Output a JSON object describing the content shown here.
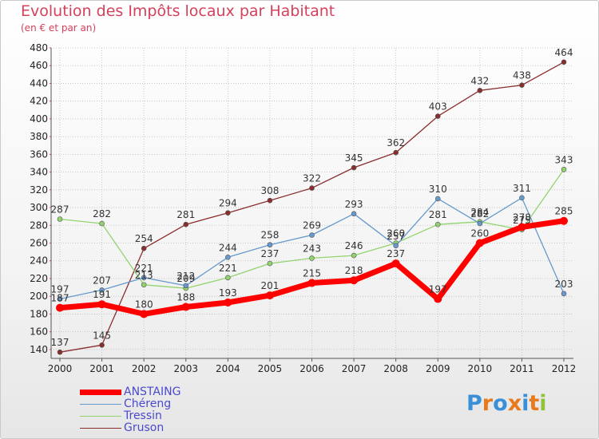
{
  "title": "Evolution des Impôts locaux par Habitant",
  "subtitle": "(en € et par an)",
  "logo": {
    "letters": [
      "P",
      "r",
      "o",
      "x",
      "i",
      "t",
      "i"
    ],
    "colors": [
      "#3a8fd9",
      "#e67a1c",
      "#3a8fd9",
      "#e67a1c",
      "#3a8fd9",
      "#e67a1c",
      "#8fc33a"
    ]
  },
  "chart_data": {
    "type": "line",
    "title": "Evolution des Impôts locaux par Habitant",
    "subtitle": "(en € et par an)",
    "xlabel": "",
    "ylabel": "",
    "ylim": [
      130,
      480
    ],
    "yticks": [
      140,
      160,
      180,
      200,
      220,
      240,
      260,
      280,
      300,
      320,
      340,
      360,
      380,
      400,
      420,
      440,
      460,
      480
    ],
    "x": [
      "2000",
      "2001",
      "2002",
      "2003",
      "2004",
      "2005",
      "2006",
      "2007",
      "2008",
      "2009",
      "2010",
      "2011",
      "2012"
    ],
    "grid": true,
    "legend_position": "bottom-left",
    "series": [
      {
        "name": "Gruson",
        "color": "#8a2d2d",
        "values": [
          137,
          145,
          254,
          281,
          294,
          308,
          322,
          345,
          362,
          403,
          432,
          438,
          464
        ],
        "labels": [
          "137",
          "145",
          "254",
          "281",
          "294",
          "308",
          "322",
          "345",
          "362",
          "403",
          "432",
          "438",
          "464"
        ]
      },
      {
        "name": "Tressin",
        "color": "#93d36e",
        "values": [
          287,
          282,
          213,
          209,
          221,
          237,
          243,
          246,
          260,
          281,
          284,
          275,
          343
        ],
        "labels": [
          "287",
          "282",
          "213",
          "209",
          "221",
          "237",
          "243",
          "246",
          "260",
          "281",
          "284",
          "275",
          "343"
        ]
      },
      {
        "name": "Chéreng",
        "color": "#6699cc",
        "values": [
          197,
          207,
          221,
          212,
          244,
          258,
          269,
          293,
          257,
          310,
          282,
          311,
          203
        ],
        "labels": [
          "197",
          "207",
          "221",
          "212",
          "244",
          "258",
          "269",
          "293",
          "257",
          "310",
          "282",
          "311",
          "203"
        ]
      },
      {
        "name": "ANSTAING",
        "color": "#ff0000",
        "values": [
          187,
          191,
          180,
          188,
          193,
          201,
          215,
          218,
          237,
          197,
          260,
          278,
          285
        ],
        "labels": [
          "187",
          "191",
          "180",
          "188",
          "193",
          "201",
          "215",
          "218",
          "237",
          "197",
          "260",
          "278",
          "285"
        ]
      }
    ],
    "legend": [
      {
        "name": "ANSTAING",
        "color": "#ff0000"
      },
      {
        "name": "Chéreng",
        "color": "#6699cc"
      },
      {
        "name": "Tressin",
        "color": "#93d36e"
      },
      {
        "name": "Gruson",
        "color": "#8a2d2d"
      }
    ]
  }
}
